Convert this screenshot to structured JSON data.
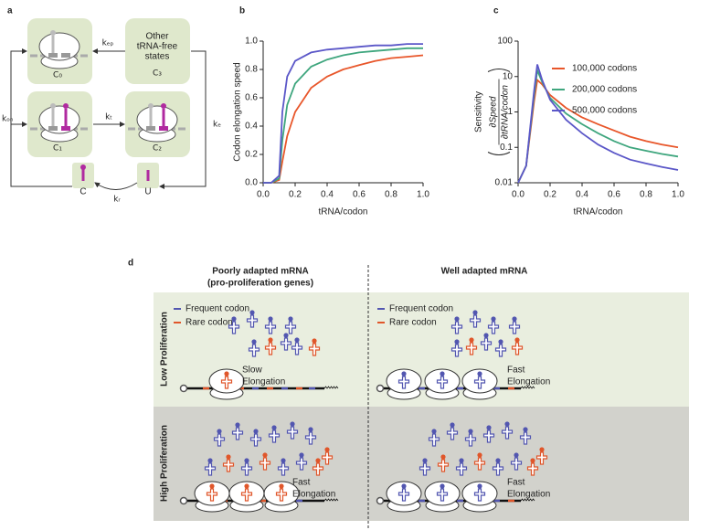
{
  "panel_a": {
    "label": "a",
    "states": {
      "c0": "C₀",
      "c1": "C₁",
      "c2": "C₂",
      "c3": "C₃"
    },
    "c3_text": [
      "Other",
      "tRNA-free",
      "states"
    ],
    "rates": {
      "kep": "kₑₚ",
      "kt": "kₜ",
      "ke": "kₑ",
      "kon": "kₒₙ",
      "kr": "kᵣ"
    },
    "trna_states": [
      "C",
      "U"
    ]
  },
  "chart_data": [
    {
      "type": "line",
      "panel_label": "b",
      "ylabel": "Codon elongation speed",
      "xlabel": "tRNA/codon",
      "x": [
        0,
        0.05,
        0.1,
        0.12,
        0.15,
        0.2,
        0.3,
        0.4,
        0.5,
        0.6,
        0.7,
        0.8,
        0.9,
        1.0
      ],
      "xlim": [
        0,
        1
      ],
      "ylim": [
        0,
        1
      ],
      "xticks": [
        {
          "value": 0,
          "label": "0.0"
        },
        {
          "value": 0.2,
          "label": "0.2"
        },
        {
          "value": 0.4,
          "label": "0.4"
        },
        {
          "value": 0.6,
          "label": "0.6"
        },
        {
          "value": 0.8,
          "label": "0.8"
        },
        {
          "value": 1,
          "label": "1.0"
        }
      ],
      "yticks": [
        {
          "value": 0,
          "label": "0.0"
        },
        {
          "value": 0.2,
          "label": "0.2"
        },
        {
          "value": 0.4,
          "label": "0.4"
        },
        {
          "value": 0.6,
          "label": "0.6"
        },
        {
          "value": 0.8,
          "label": "0.8"
        },
        {
          "value": 1,
          "label": "1.0"
        }
      ],
      "series": [
        {
          "color": "#e8562a",
          "values": [
            0,
            0,
            0.02,
            0.15,
            0.33,
            0.5,
            0.67,
            0.75,
            0.8,
            0.83,
            0.86,
            0.88,
            0.89,
            0.9
          ]
        },
        {
          "color": "#3fa67e",
          "values": [
            0,
            0,
            0.03,
            0.3,
            0.55,
            0.7,
            0.82,
            0.87,
            0.9,
            0.92,
            0.93,
            0.94,
            0.95,
            0.95
          ]
        },
        {
          "color": "#5b57c8",
          "values": [
            0,
            0,
            0.05,
            0.5,
            0.75,
            0.86,
            0.92,
            0.94,
            0.95,
            0.96,
            0.97,
            0.97,
            0.98,
            0.98
          ]
        }
      ]
    },
    {
      "type": "line",
      "panel_label": "c",
      "ylabel": "Sensitivity",
      "ylabel_fraction": {
        "numerator": "∂Speed",
        "denominator": "∂tRNA/codon"
      },
      "xlabel": "tRNA/codon",
      "y_scale": "log",
      "legend": "right",
      "x": [
        0,
        0.05,
        0.1,
        0.12,
        0.15,
        0.2,
        0.3,
        0.4,
        0.5,
        0.6,
        0.7,
        0.8,
        0.9,
        1.0
      ],
      "xlim": [
        0,
        1
      ],
      "ylim": [
        0.01,
        100
      ],
      "xticks": [
        {
          "value": 0,
          "label": "0.0"
        },
        {
          "value": 0.2,
          "label": "0.2"
        },
        {
          "value": 0.4,
          "label": "0.4"
        },
        {
          "value": 0.6,
          "label": "0.6"
        },
        {
          "value": 0.8,
          "label": "0.8"
        },
        {
          "value": 1,
          "label": "1.0"
        }
      ],
      "yticks": [
        0.01,
        0.1,
        1,
        10,
        100
      ],
      "series": [
        {
          "name": "100,000 codons",
          "color": "#e8562a",
          "values": [
            0.01,
            0.03,
            2,
            8,
            6,
            3,
            1.3,
            0.7,
            0.45,
            0.3,
            0.2,
            0.15,
            0.12,
            0.1
          ]
        },
        {
          "name": "200,000 codons",
          "color": "#3fa67e",
          "values": [
            0.01,
            0.03,
            3,
            15,
            7,
            2.5,
            0.9,
            0.45,
            0.25,
            0.15,
            0.1,
            0.08,
            0.065,
            0.055
          ]
        },
        {
          "name": "500,000 codons",
          "color": "#5b57c8",
          "values": [
            0.01,
            0.03,
            4,
            22,
            8,
            2.2,
            0.6,
            0.25,
            0.12,
            0.07,
            0.045,
            0.035,
            0.028,
            0.023
          ]
        }
      ]
    }
  ],
  "panel_d": {
    "label": "d",
    "columns": [
      [
        "Poorly adapted mRNA",
        "(pro-proliferation genes)"
      ],
      [
        "Well adapted mRNA"
      ]
    ],
    "rows": [
      "Low Proliferation",
      "High Proliferation"
    ],
    "legend": [
      "Frequent codon",
      "Rare codon"
    ],
    "elongation": {
      "slow": "Slow",
      "fast": "Fast",
      "word": "Elongation"
    }
  }
}
